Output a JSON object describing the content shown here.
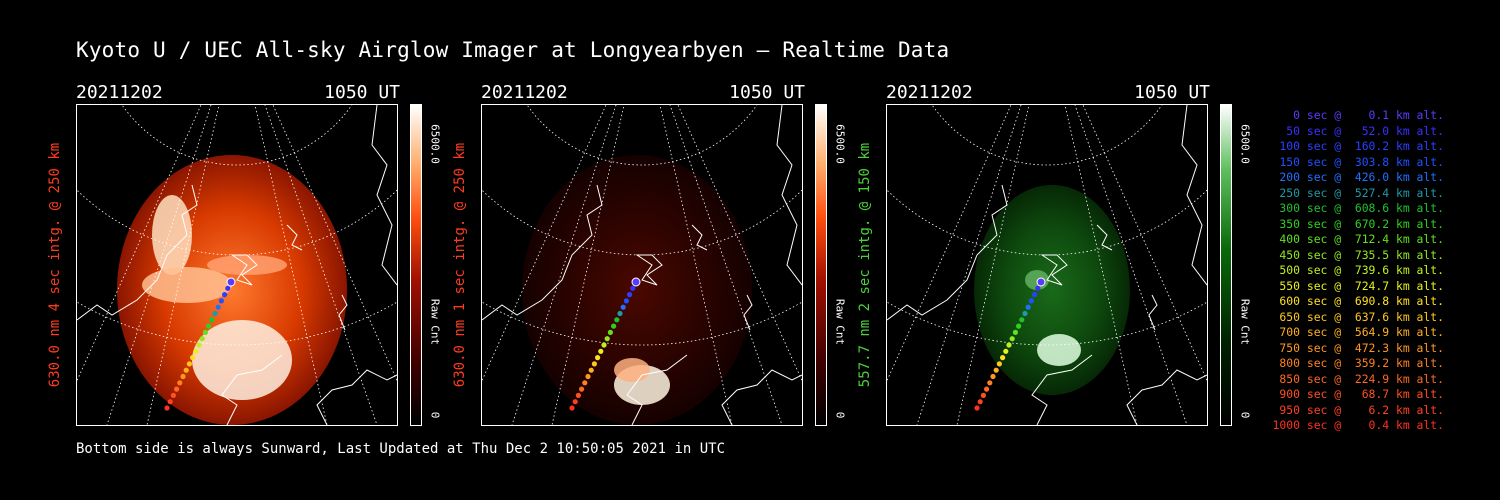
{
  "title": "Kyoto U / UEC All-sky Airglow Imager at Longyearbyen — Realtime Data",
  "footer": "Bottom side is always Sunward, Last Updated at Thu Dec  2 10:50:05 2021 in UTC",
  "colors": {
    "red_label": "#ff3b1f",
    "green_label": "#4cd13a"
  },
  "panels": [
    {
      "date": "20211202",
      "time": "1050 UT",
      "ylabel": "630.0 nm 4 sec intg. @ 250 km",
      "cmax": "6500.0",
      "cunit": "Raw Cnt",
      "cmin": "0",
      "scheme": "red",
      "brightness": 1.0
    },
    {
      "date": "20211202",
      "time": "1050 UT",
      "ylabel": "630.0 nm 1 sec intg. @ 250 km",
      "cmax": "6500.0",
      "cunit": "Raw Cnt",
      "cmin": "0",
      "scheme": "red",
      "brightness": 0.35
    },
    {
      "date": "20211202",
      "time": "1050 UT",
      "ylabel": "557.7 nm 2 sec intg. @ 150 km",
      "cmax": "6500.0",
      "cunit": "Raw Cnt",
      "cmin": "0",
      "scheme": "green",
      "brightness": 0.6
    }
  ],
  "legend": [
    {
      "text": "   0 sec @    0.1 km alt.",
      "color": "#5a3cff"
    },
    {
      "text": "  50 sec @   52.0 km alt.",
      "color": "#3a30ff"
    },
    {
      "text": " 100 sec @  160.2 km alt.",
      "color": "#2a40ff"
    },
    {
      "text": " 150 sec @  303.8 km alt.",
      "color": "#2050ff"
    },
    {
      "text": " 200 sec @  426.0 km alt.",
      "color": "#2070ff"
    },
    {
      "text": " 250 sec @  527.4 km alt.",
      "color": "#1e9aa8"
    },
    {
      "text": " 300 sec @  608.6 km alt.",
      "color": "#20c030"
    },
    {
      "text": " 350 sec @  670.2 km alt.",
      "color": "#30d020"
    },
    {
      "text": " 400 sec @  712.4 km alt.",
      "color": "#60e020"
    },
    {
      "text": " 450 sec @  735.5 km alt.",
      "color": "#90e820"
    },
    {
      "text": " 500 sec @  739.6 km alt.",
      "color": "#c0f020"
    },
    {
      "text": " 550 sec @  724.7 km alt.",
      "color": "#e8f020"
    },
    {
      "text": " 600 sec @  690.8 km alt.",
      "color": "#ffe020"
    },
    {
      "text": " 650 sec @  637.6 km alt.",
      "color": "#ffc820"
    },
    {
      "text": " 700 sec @  564.9 km alt.",
      "color": "#ffb020"
    },
    {
      "text": " 750 sec @  472.3 km alt.",
      "color": "#ff9820"
    },
    {
      "text": " 800 sec @  359.2 km alt.",
      "color": "#ff8020"
    },
    {
      "text": " 850 sec @  224.9 km alt.",
      "color": "#ff6820"
    },
    {
      "text": " 900 sec @   68.7 km alt.",
      "color": "#ff5020"
    },
    {
      "text": " 950 sec @    6.2 km alt.",
      "color": "#ff4020"
    },
    {
      "text": "1000 sec @    0.4 km alt.",
      "color": "#ff3020"
    }
  ]
}
